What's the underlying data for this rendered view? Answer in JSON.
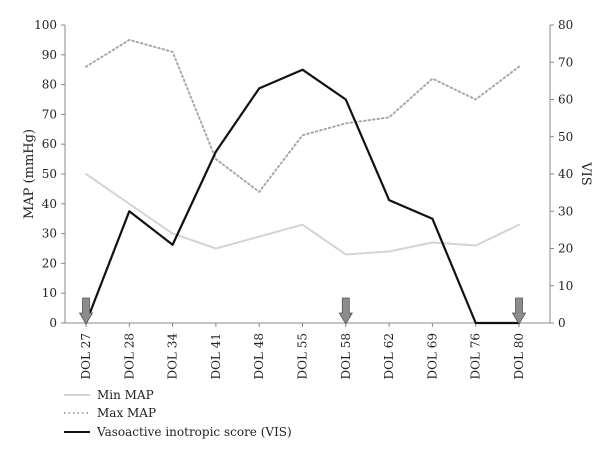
{
  "chart_data": {
    "type": "line",
    "categories": [
      "DOL 27",
      "DOL 28",
      "DOL 34",
      "DOL 41",
      "DOL 48",
      "DOL 55",
      "DOL 58",
      "DOL 62",
      "DOL 69",
      "DOL 76",
      "DOL 80"
    ],
    "ylabel": "MAP (mmHg)",
    "y2label": "VIS",
    "ylim": [
      0,
      100
    ],
    "y2lim": [
      0,
      80
    ],
    "yticks": [
      "0",
      "10",
      "20",
      "30",
      "40",
      "50",
      "60",
      "70",
      "80",
      "90",
      "100"
    ],
    "y2ticks": [
      "0",
      "10",
      "20",
      "30",
      "40",
      "50",
      "60",
      "70",
      "80"
    ],
    "grid": false,
    "legend_position": "bottom-left",
    "series": [
      {
        "name": "Min MAP",
        "axis": "left",
        "style": "solid",
        "color": "#d4d4d4",
        "values": [
          50,
          40,
          30,
          25,
          29,
          33,
          23,
          24,
          27,
          26,
          33
        ]
      },
      {
        "name": "Max MAP",
        "axis": "left",
        "style": "dotted",
        "color": "#a8a8a8",
        "values": [
          86,
          95,
          91,
          55,
          44,
          63,
          67,
          69,
          82,
          75,
          86
        ]
      },
      {
        "name": "Vasoactive inotropic score (VIS)",
        "axis": "right",
        "style": "solid",
        "color": "#111111",
        "values": [
          0,
          30,
          21,
          46,
          63,
          68,
          60,
          33,
          28,
          0,
          0
        ]
      }
    ],
    "markers": [
      {
        "type": "arrow",
        "category": "DOL 27"
      },
      {
        "type": "arrow",
        "category": "DOL 58"
      },
      {
        "type": "arrow",
        "category": "DOL 80"
      }
    ],
    "marker_color": "#8c8c8c"
  }
}
